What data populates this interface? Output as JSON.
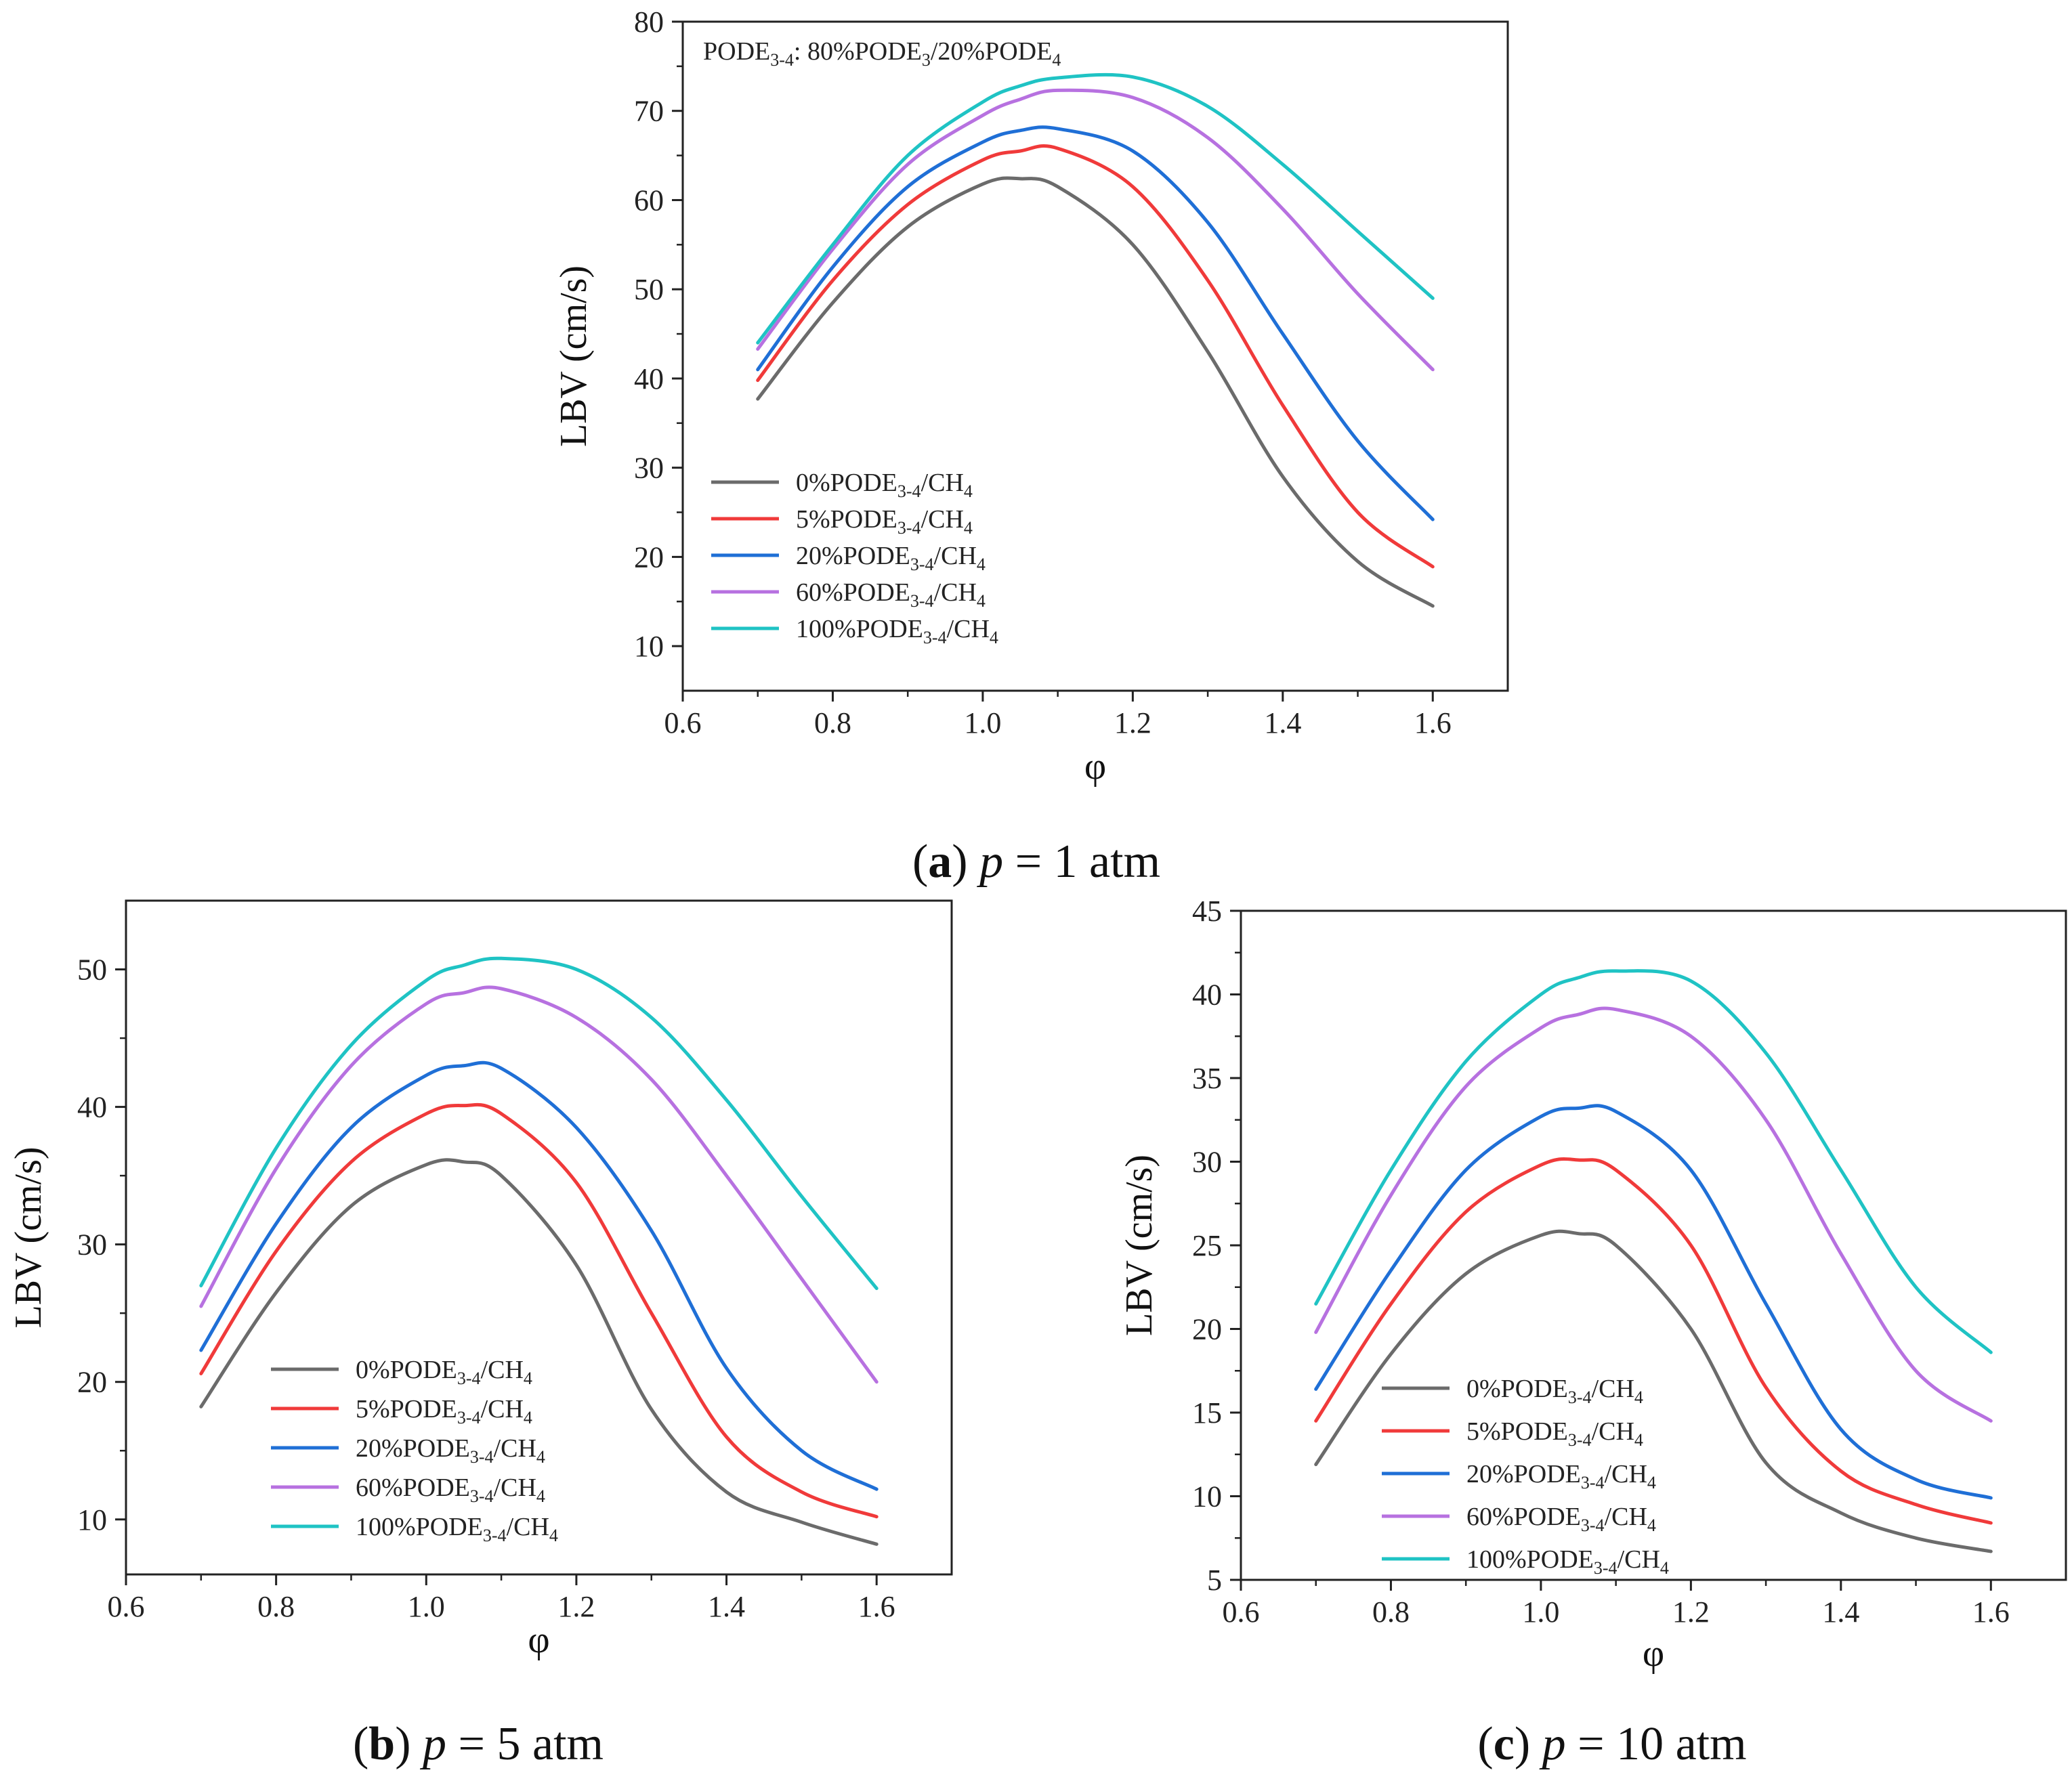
{
  "figure_captions": [
    {
      "letter": "a",
      "var": "p",
      "rest": " = 1 atm"
    },
    {
      "letter": "b",
      "var": "p",
      "rest": " = 5 atm"
    },
    {
      "letter": "c",
      "var": "p",
      "rest": " = 10 atm"
    }
  ],
  "colors": {
    "series": [
      "#6b6b6b",
      "#f03a3a",
      "#1f6fd6",
      "#b771e0",
      "#1fc3c4"
    ]
  },
  "chart_data": [
    {
      "type": "line",
      "panel": "a",
      "title": "",
      "annotation": {
        "base": "PODE",
        "sub": "3-4",
        "rest": ": 80%PODE",
        "sub2": "3",
        "rest2": "/20%PODE",
        "sub3": "4"
      },
      "xlabel": "φ",
      "ylabel": "LBV (cm/s)",
      "xlim": [
        0.6,
        1.7
      ],
      "ylim": [
        5,
        80
      ],
      "xticks": [
        "0.6",
        "0.8",
        "1.0",
        "1.2",
        "1.4",
        "1.6"
      ],
      "yticks": [
        "10",
        "20",
        "30",
        "40",
        "50",
        "60",
        "70",
        "80"
      ],
      "x": [
        0.7,
        0.8,
        0.9,
        1.0,
        1.05,
        1.1,
        1.2,
        1.3,
        1.4,
        1.5,
        1.6
      ],
      "series": [
        {
          "name": "0%PODE3-4/CH4",
          "pre": "0%PODE",
          "sub1": "3-4",
          "mid": "/CH",
          "sub2": "4",
          "values": [
            37.7,
            48.5,
            57.0,
            61.8,
            62.4,
            61.5,
            55.0,
            43.0,
            29.0,
            19.5,
            14.5
          ]
        },
        {
          "name": "5%PODE3-4/CH4",
          "pre": "5%PODE",
          "sub1": "3-4",
          "mid": "/CH",
          "sub2": "4",
          "values": [
            39.8,
            51.0,
            59.5,
            64.5,
            65.5,
            65.8,
            61.5,
            51.0,
            37.0,
            25.0,
            18.9
          ]
        },
        {
          "name": "20%PODE3-4/CH4",
          "pre": "20%PODE",
          "sub1": "3-4",
          "mid": "/CH",
          "sub2": "4",
          "values": [
            41.0,
            52.5,
            61.5,
            66.5,
            67.8,
            68.0,
            65.5,
            57.5,
            45.0,
            33.0,
            24.2
          ]
        },
        {
          "name": "60%PODE3-4/CH4",
          "pre": "60%PODE",
          "sub1": "3-4",
          "mid": "/CH",
          "sub2": "4",
          "values": [
            43.3,
            54.5,
            64.0,
            69.5,
            71.3,
            72.3,
            71.5,
            67.0,
            59.0,
            49.5,
            41.0
          ]
        },
        {
          "name": "100%PODE3-4/CH4",
          "pre": "100%PODE",
          "sub1": "3-4",
          "mid": "/CH",
          "sub2": "4",
          "values": [
            44.0,
            55.0,
            65.0,
            71.0,
            72.8,
            73.7,
            73.8,
            70.5,
            64.0,
            56.5,
            49.0
          ]
        }
      ],
      "legend": "lower-left"
    },
    {
      "type": "line",
      "panel": "b",
      "title": "",
      "xlabel": "φ",
      "ylabel": "LBV (cm/s)",
      "xlim": [
        0.6,
        1.7
      ],
      "ylim": [
        6,
        55
      ],
      "xticks": [
        "0.6",
        "0.8",
        "1.0",
        "1.2",
        "1.4",
        "1.6"
      ],
      "yticks": [
        "10",
        "20",
        "30",
        "40",
        "50"
      ],
      "x": [
        0.7,
        0.8,
        0.9,
        1.0,
        1.05,
        1.1,
        1.2,
        1.3,
        1.4,
        1.5,
        1.6
      ],
      "series": [
        {
          "name": "0%PODE3-4/CH4",
          "pre": "0%PODE",
          "sub1": "3-4",
          "mid": "/CH",
          "sub2": "4",
          "values": [
            18.2,
            26.5,
            32.8,
            35.8,
            36.0,
            35.0,
            28.5,
            18.0,
            12.0,
            9.8,
            8.2
          ]
        },
        {
          "name": "5%PODE3-4/CH4",
          "pre": "5%PODE",
          "sub1": "3-4",
          "mid": "/CH",
          "sub2": "4",
          "values": [
            20.6,
            29.5,
            36.0,
            39.5,
            40.1,
            39.5,
            34.5,
            25.0,
            16.0,
            12.0,
            10.2
          ]
        },
        {
          "name": "20%PODE3-4/CH4",
          "pre": "20%PODE",
          "sub1": "3-4",
          "mid": "/CH",
          "sub2": "4",
          "values": [
            22.3,
            31.5,
            38.5,
            42.3,
            43.0,
            42.8,
            38.5,
            31.0,
            21.0,
            15.0,
            12.2
          ]
        },
        {
          "name": "60%PODE3-4/CH4",
          "pre": "60%PODE",
          "sub1": "3-4",
          "mid": "/CH",
          "sub2": "4",
          "values": [
            25.5,
            35.5,
            43.0,
            47.5,
            48.3,
            48.6,
            46.5,
            42.0,
            35.0,
            27.5,
            20.0
          ]
        },
        {
          "name": "100%PODE3-4/CH4",
          "pre": "100%PODE",
          "sub1": "3-4",
          "mid": "/CH",
          "sub2": "4",
          "values": [
            27.0,
            37.0,
            44.5,
            49.2,
            50.3,
            50.8,
            50.0,
            46.5,
            40.5,
            33.5,
            26.8
          ]
        }
      ],
      "legend": "lower-left"
    },
    {
      "type": "line",
      "panel": "c",
      "title": "",
      "xlabel": "φ",
      "ylabel": "LBV (cm/s)",
      "xlim": [
        0.6,
        1.7
      ],
      "ylim": [
        5,
        45
      ],
      "xticks": [
        "0.6",
        "0.8",
        "1.0",
        "1.2",
        "1.4",
        "1.6"
      ],
      "yticks": [
        "5",
        "10",
        "15",
        "20",
        "25",
        "30",
        "35",
        "40",
        "45"
      ],
      "x": [
        0.7,
        0.8,
        0.9,
        1.0,
        1.05,
        1.1,
        1.2,
        1.3,
        1.4,
        1.5,
        1.6
      ],
      "series": [
        {
          "name": "0%PODE3-4/CH4",
          "pre": "0%PODE",
          "sub1": "3-4",
          "mid": "/CH",
          "sub2": "4",
          "values": [
            11.9,
            18.5,
            23.3,
            25.6,
            25.7,
            25.0,
            20.0,
            12.0,
            9.0,
            7.5,
            6.7
          ]
        },
        {
          "name": "5%PODE3-4/CH4",
          "pre": "5%PODE",
          "sub1": "3-4",
          "mid": "/CH",
          "sub2": "4",
          "values": [
            14.5,
            21.5,
            27.0,
            29.8,
            30.1,
            29.5,
            25.0,
            16.5,
            11.5,
            9.5,
            8.4
          ]
        },
        {
          "name": "20%PODE3-4/CH4",
          "pre": "20%PODE",
          "sub1": "3-4",
          "mid": "/CH",
          "sub2": "4",
          "values": [
            16.4,
            23.5,
            29.5,
            32.7,
            33.2,
            33.0,
            29.5,
            21.5,
            14.0,
            11.0,
            9.9
          ]
        },
        {
          "name": "60%PODE3-4/CH4",
          "pre": "60%PODE",
          "sub1": "3-4",
          "mid": "/CH",
          "sub2": "4",
          "values": [
            19.8,
            28.0,
            34.5,
            38.0,
            38.8,
            39.1,
            37.5,
            32.5,
            24.5,
            17.5,
            14.5
          ]
        },
        {
          "name": "100%PODE3-4/CH4",
          "pre": "100%PODE",
          "sub1": "3-4",
          "mid": "/CH",
          "sub2": "4",
          "values": [
            21.5,
            29.5,
            36.0,
            40.0,
            41.0,
            41.4,
            40.8,
            36.5,
            29.5,
            22.5,
            18.6
          ]
        }
      ],
      "legend": "lower-left"
    }
  ]
}
